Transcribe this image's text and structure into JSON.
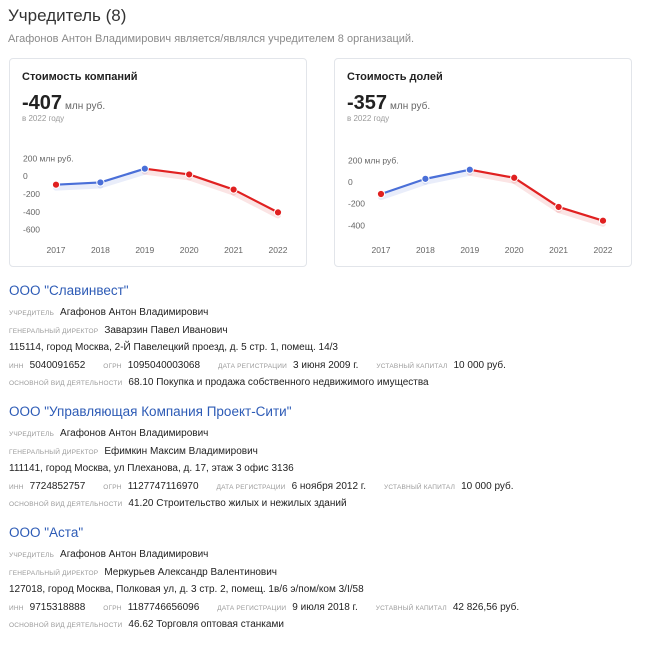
{
  "header": {
    "title": "Учредитель (8)",
    "subtitle": "Агафонов Антон Владимирович является/являлся учредителем 8 организаций."
  },
  "cards": [
    {
      "title": "Стоимость компаний",
      "value": "-407",
      "unit": "млн руб.",
      "year": "в 2022 году",
      "chart_data": {
        "type": "line",
        "x": [
          "2017",
          "2018",
          "2019",
          "2020",
          "2021",
          "2022"
        ],
        "values": [
          -95,
          -70,
          85,
          20,
          -150,
          -407
        ],
        "yticks": [
          "200 млн руб.",
          "0",
          "-200",
          "-400",
          "-600"
        ],
        "ylim": [
          -650,
          250
        ],
        "rising_color": "#4a6fd8",
        "falling_color": "#e02020"
      }
    },
    {
      "title": "Стоимость долей",
      "value": "-357",
      "unit": "млн руб.",
      "year": "в 2022 году",
      "chart_data": {
        "type": "line",
        "x": [
          "2017",
          "2018",
          "2019",
          "2020",
          "2021",
          "2022"
        ],
        "values": [
          -110,
          30,
          115,
          40,
          -230,
          -357
        ],
        "yticks": [
          "200 млн руб.",
          "0",
          "-200",
          "-400"
        ],
        "ylim": [
          -480,
          260
        ],
        "rising_color": "#4a6fd8",
        "falling_color": "#e02020"
      }
    }
  ],
  "labels": {
    "founder": "учредитель",
    "director": "генеральный директор",
    "inn": "инн",
    "ogrn": "огрн",
    "reg_date": "дата регистрации",
    "capital": "уставный капитал",
    "activity": "основной вид деятельности"
  },
  "companies": [
    {
      "name": "ООО \"Славинвест\"",
      "founder": "Агафонов Антон Владимирович",
      "director": "Заварзин Павел Иванович",
      "address": "115114, город Москва, 2-Й Павелецкий проезд, д. 5 стр. 1, помещ. 14/3",
      "inn": "5040091652",
      "ogrn": "1095040003068",
      "reg_date": "3 июня 2009 г.",
      "capital": "10 000 руб.",
      "activity": "68.10 Покупка и продажа собственного недвижимого имущества"
    },
    {
      "name": "ООО \"Управляющая Компания Проект-Сити\"",
      "founder": "Агафонов Антон Владимирович",
      "director": "Ефимкин Максим Владимирович",
      "address": "111141, город Москва, ул Плеханова, д. 17, этаж 3 офис 3136",
      "inn": "7724852757",
      "ogrn": "1127747116970",
      "reg_date": "6 ноября 2012 г.",
      "capital": "10 000 руб.",
      "activity": "41.20 Строительство жилых и нежилых зданий"
    },
    {
      "name": "ООО \"Аста\"",
      "founder": "Агафонов Антон Владимирович",
      "director": "Меркурьев Александр Валентинович",
      "address": "127018, город Москва, Полковая ул, д. 3 стр. 2, помещ. 1в/6 э/пом/ком 3/I/58",
      "inn": "9715318888",
      "ogrn": "1187746656096",
      "reg_date": "9 июля 2018 г.",
      "capital": "42 826,56 руб.",
      "activity": "46.62 Торговля оптовая станками"
    }
  ]
}
